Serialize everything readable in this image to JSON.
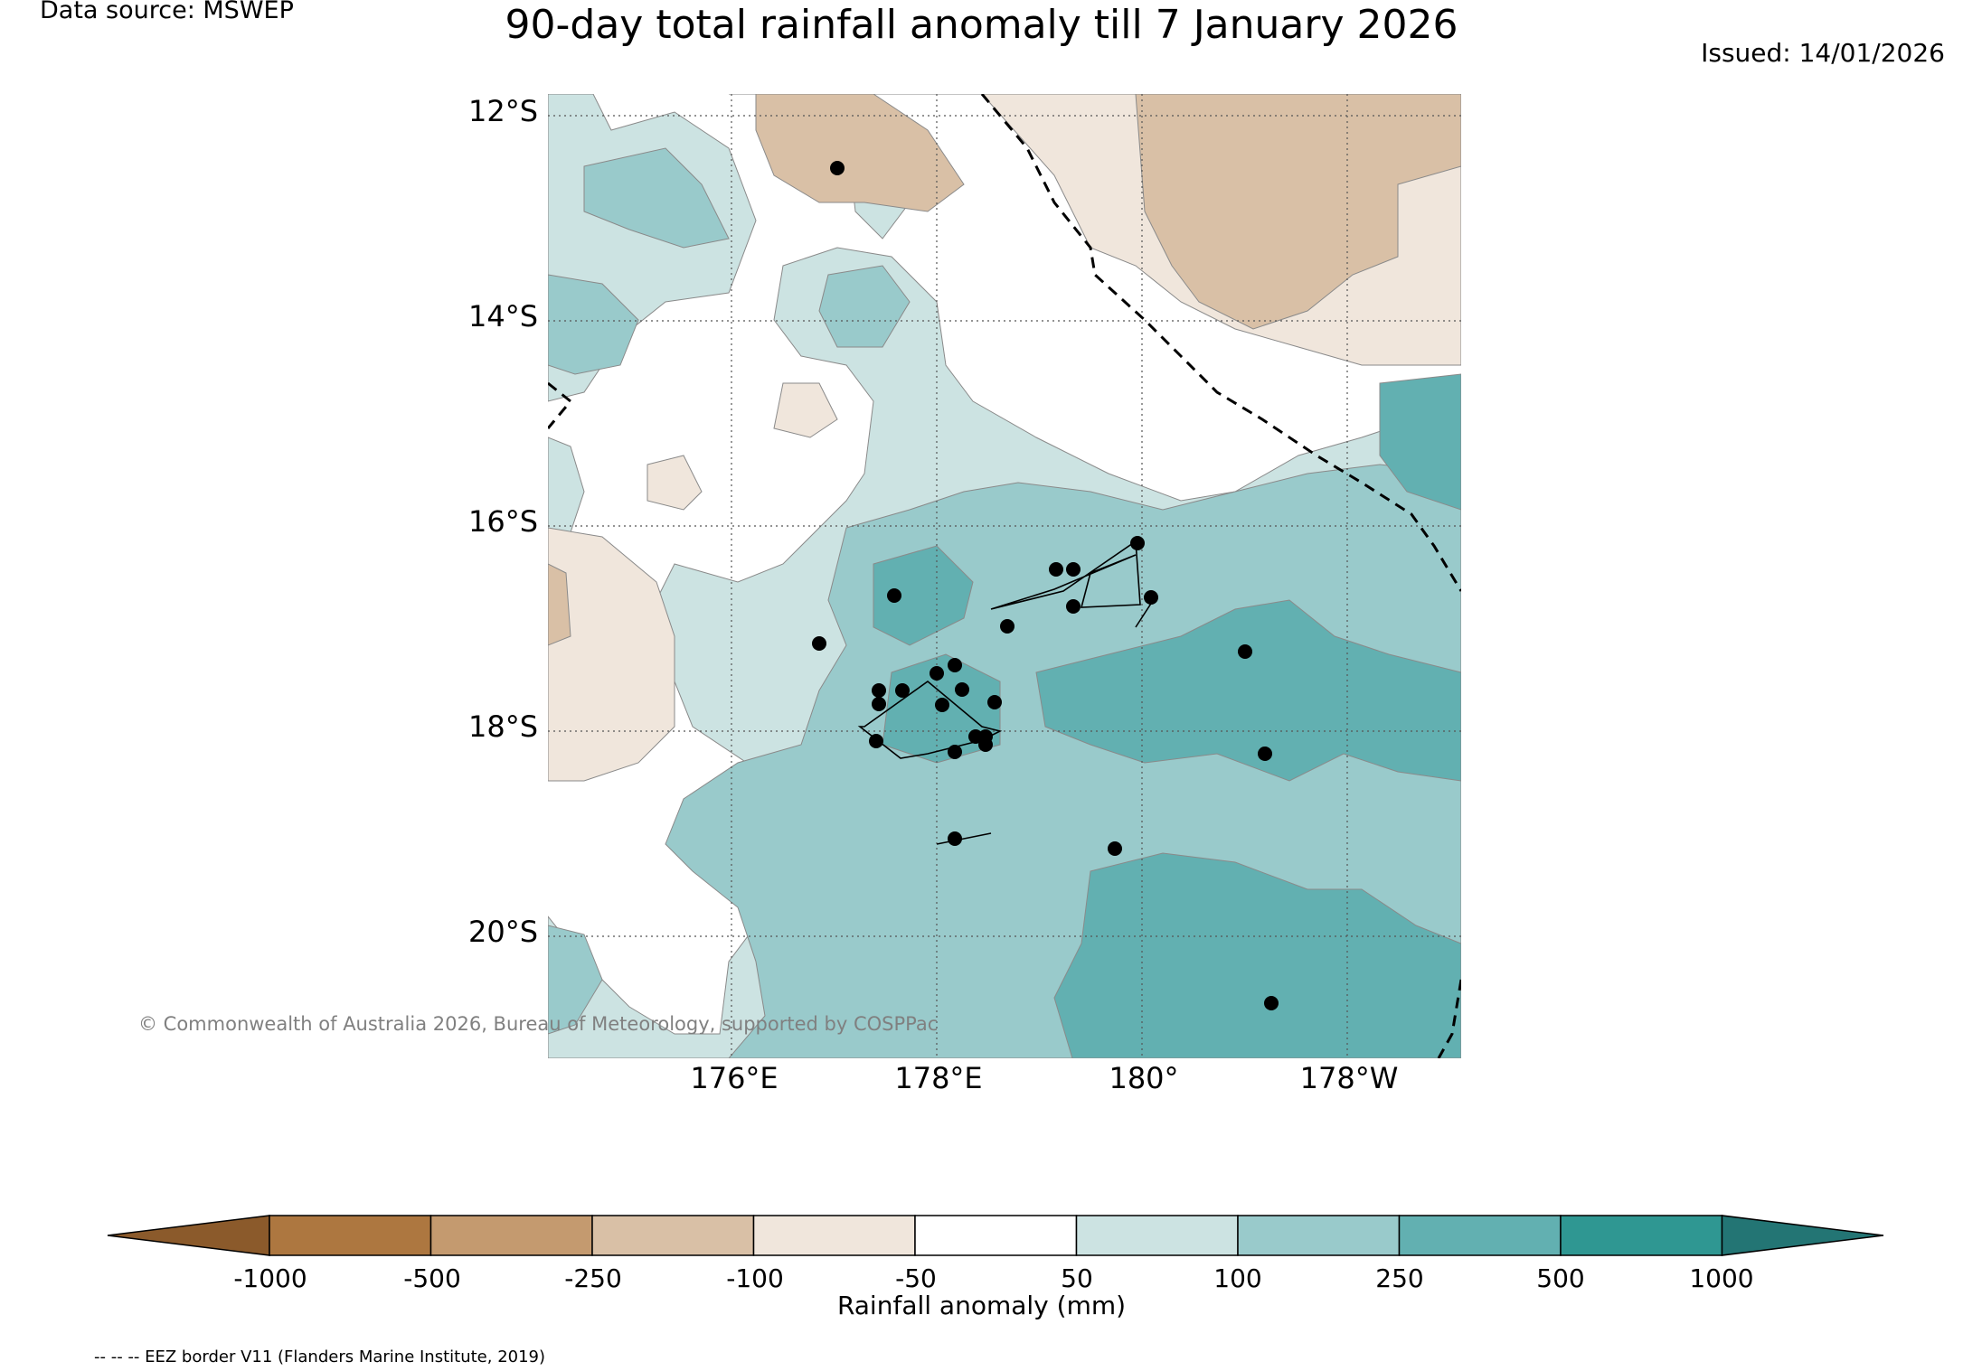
{
  "header": {
    "title": "90-day total rainfall anomaly till 7 January 2026",
    "source": "Data source: MSWEP",
    "issued": "Issued: 14/01/2026"
  },
  "map": {
    "lat_labels": [
      "12°S",
      "14°S",
      "16°S",
      "18°S",
      "20°S"
    ],
    "lon_labels": [
      "176°E",
      "178°E",
      "180°",
      "178°W"
    ],
    "copyright": "© Commonwealth of Australia 2026, Bureau of Meteorology, supported by COSPPac",
    "eez_note": "-- -- -- EEZ border V11 (Flanders Marine Institute, 2019)",
    "colors": {
      "land_line": "#000000",
      "neg_1000": "#8b5a2b",
      "neg_500": "#ad7740",
      "neg_250": "#c49a6f",
      "neg_100": "#d9c0a6",
      "neg_50": "#f0e6dc",
      "neutral": "#ffffff",
      "pos_50": "#cce3e2",
      "pos_100": "#99cacb",
      "pos_250": "#62b0b1",
      "pos_500": "#2f9792",
      "pos_1000": "#237574"
    }
  },
  "colorbar": {
    "label": "Rainfall anomaly (mm)",
    "ticks": [
      "-1000",
      "-500",
      "-250",
      "-100",
      "-50",
      "50",
      "100",
      "250",
      "500",
      "1000"
    ],
    "colors": [
      "#ad7740",
      "#c49a6f",
      "#d9c0a6",
      "#f0e6dc",
      "#ffffff",
      "#cce3e2",
      "#99cacb",
      "#62b0b1",
      "#2f9792"
    ],
    "low_extend_color": "#8b5a2b",
    "high_extend_color": "#237574"
  }
}
